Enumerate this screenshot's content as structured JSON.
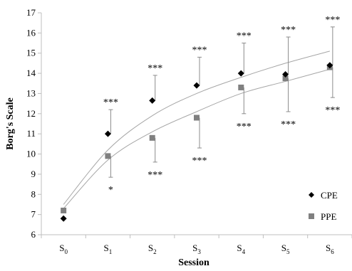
{
  "chart_data": {
    "type": "scatter",
    "xlabel": "Session",
    "ylabel": "Borg's Scale",
    "ylim": [
      6,
      17
    ],
    "yticks": [
      6,
      7,
      8,
      9,
      10,
      11,
      12,
      13,
      14,
      15,
      16,
      17
    ],
    "categories": [
      {
        "base": "S",
        "sub": "0"
      },
      {
        "base": "S",
        "sub": "1"
      },
      {
        "base": "S",
        "sub": "2"
      },
      {
        "base": "S",
        "sub": "3"
      },
      {
        "base": "S",
        "sub": "4"
      },
      {
        "base": "S",
        "sub": "5"
      },
      {
        "base": "S",
        "sub": "6"
      }
    ],
    "legend_position": "bottom-right",
    "series": [
      {
        "name": "CPE",
        "marker": "diamond",
        "color": "#000000",
        "values": [
          6.8,
          11.0,
          12.65,
          13.4,
          14.0,
          13.95,
          14.4
        ],
        "error_upper": [
          0.0,
          1.2,
          1.25,
          1.4,
          1.5,
          1.85,
          1.9
        ],
        "significance": [
          "",
          "***",
          "***",
          "***",
          "***",
          "***",
          "***"
        ],
        "fit": {
          "type": "log",
          "values": [
            7.5,
            10.2,
            11.9,
            13.0,
            13.8,
            14.5,
            15.1
          ]
        }
      },
      {
        "name": "PPE",
        "marker": "square",
        "color": "#808080",
        "values": [
          7.2,
          9.9,
          10.8,
          11.8,
          13.3,
          13.75,
          14.3
        ],
        "error_lower": [
          0.0,
          1.05,
          1.2,
          1.5,
          1.3,
          1.65,
          1.5
        ],
        "significance": [
          "",
          "*",
          "***",
          "***",
          "***",
          "***",
          "***"
        ],
        "fit": {
          "type": "log",
          "values": [
            7.3,
            9.7,
            11.1,
            12.1,
            13.0,
            13.6,
            14.2
          ]
        }
      }
    ]
  }
}
